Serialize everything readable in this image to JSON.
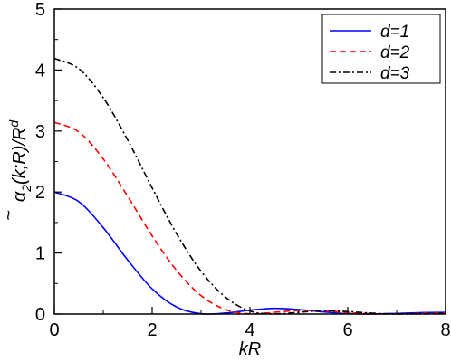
{
  "chart_data": {
    "type": "line",
    "xlabel": "kR",
    "ylabel": "α̃₂(k;R)/R^d",
    "xlim": [
      0,
      8
    ],
    "ylim": [
      0,
      5
    ],
    "x_ticks": [
      "0",
      "2",
      "4",
      "6",
      "8"
    ],
    "y_ticks": [
      "0",
      "1",
      "2",
      "3",
      "4",
      "5"
    ],
    "grid": false,
    "legend_position": "top-right",
    "x": [
      0,
      0.5,
      1,
      1.5,
      2,
      2.5,
      3,
      3.5,
      4,
      4.5,
      5,
      5.5,
      6,
      6.5,
      7,
      7.5,
      8
    ],
    "series": [
      {
        "name": "d=1",
        "color": "#0000ff",
        "dash": "solid",
        "values": [
          2.0,
          1.842,
          1.416,
          0.885,
          0.413,
          0.115,
          0.004,
          0.016,
          0.064,
          0.094,
          0.074,
          0.035,
          0.006,
          0.001,
          0.011,
          0.024,
          0.027
        ]
      },
      {
        "name": "d=2",
        "color": "#ff0000",
        "dash": "dashed",
        "values": [
          3.142,
          2.985,
          2.543,
          1.929,
          1.281,
          0.715,
          0.302,
          0.074,
          0.004,
          0.028,
          0.059,
          0.054,
          0.025,
          0.004,
          0.001,
          0.011,
          0.017
        ]
      },
      {
        "name": "d=3",
        "color": "#000000",
        "dash": "dashdot",
        "values": [
          4.189,
          4.022,
          3.546,
          2.852,
          2.067,
          1.316,
          0.701,
          0.276,
          0.05,
          0.002,
          0.03,
          0.054,
          0.041,
          0.015,
          0.001,
          0.003,
          0.009
        ]
      }
    ]
  }
}
